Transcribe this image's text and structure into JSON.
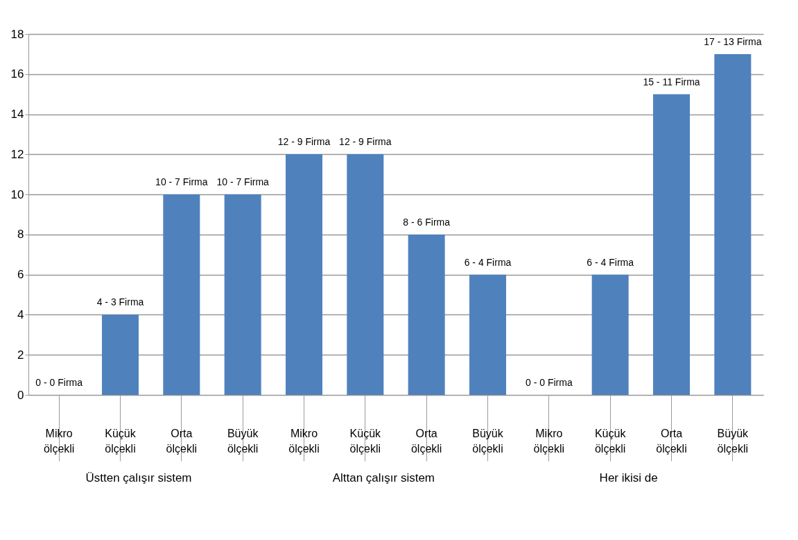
{
  "chart_data": {
    "type": "bar",
    "categories": [
      "Mikro ölçekli",
      "Küçük ölçekli",
      "Orta ölçekli",
      "Büyük ölçekli",
      "Mikro ölçekli",
      "Küçük ölçekli",
      "Orta ölçekli",
      "Büyük ölçekli",
      "Mikro ölçekli",
      "Küçük ölçekli",
      "Orta ölçekli",
      "Büyük ölçekli"
    ],
    "values": [
      0,
      4,
      10,
      10,
      12,
      12,
      8,
      6,
      0,
      6,
      15,
      17
    ],
    "value_labels": [
      "0 - 0 Firma",
      "4 - 3 Firma",
      "10 - 7 Firma",
      "10 - 7 Firma",
      "12 - 9 Firma",
      "12 - 9 Firma",
      "8 - 6 Firma",
      "6 - 4 Firma",
      "0 - 0 Firma",
      "6 - 4 Firma",
      "15 - 11 Firma",
      "17 - 13 Firma"
    ],
    "color": "#4f81bd",
    "ylim": [
      0,
      18
    ],
    "yticks": [
      0,
      2,
      4,
      6,
      8,
      10,
      12,
      14,
      16,
      18
    ],
    "grid": "y",
    "annotations": [
      "Üstten çalışır sistem",
      "Alttan çalışır sistem",
      "Her ikisi de"
    ]
  }
}
